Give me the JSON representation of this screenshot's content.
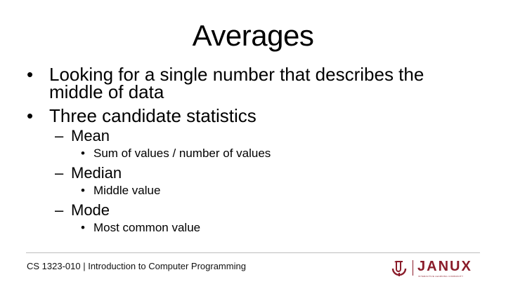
{
  "slide": {
    "title": "Averages",
    "bullets": [
      "Looking for a single number that describes the middle of data",
      "Three candidate statistics"
    ],
    "statistics": [
      {
        "name": "Mean",
        "detail": "Sum of values / number of values"
      },
      {
        "name": "Median",
        "detail": "Middle value"
      },
      {
        "name": "Mode",
        "detail": "Most common value"
      }
    ],
    "bullet_glyph": "•",
    "dash_glyph": "–"
  },
  "footer": {
    "course": "CS 1323-010 | Introduction to Computer Programming",
    "brand": "JANUX",
    "brand_tagline": "INTERACTIVE LEARNING COMMUNITY",
    "logo_icon": "ou-logo-icon",
    "brand_color": "#8a1c2a"
  }
}
